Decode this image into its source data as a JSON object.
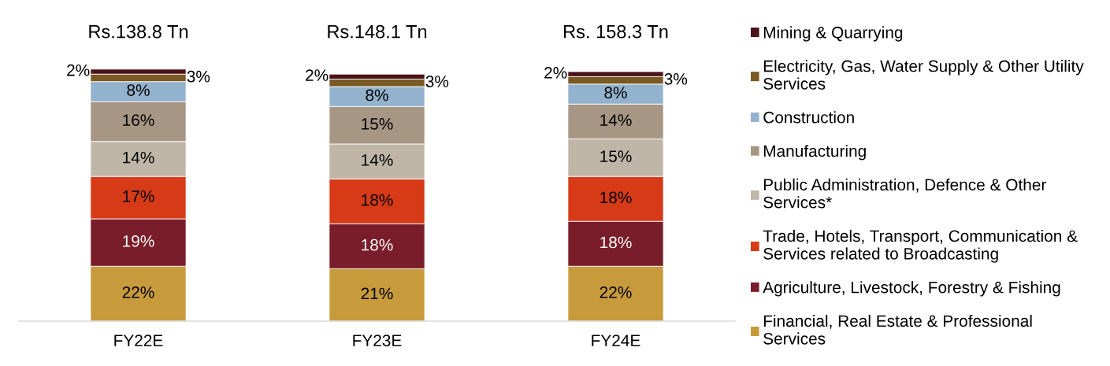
{
  "chart_data": {
    "type": "bar",
    "stacked": true,
    "categories": [
      "FY22E",
      "FY23E",
      "FY24E"
    ],
    "series": [
      {
        "name": "Financial, Real Estate & Professional Services",
        "color": "#c79a3b",
        "values": [
          22,
          21,
          22
        ],
        "value_labels": [
          "22%",
          "21%",
          "22%"
        ]
      },
      {
        "name": "Agriculture, Livestock, Forestry & Fishing",
        "color": "#7a1d2a",
        "values": [
          19,
          18,
          18
        ],
        "value_labels": [
          "19%",
          "18%",
          "18%"
        ]
      },
      {
        "name": "Trade, Hotels, Transport, Communication & Services related to Broadcasting",
        "color": "#d63a16",
        "values": [
          17,
          18,
          18
        ],
        "value_labels": [
          "17%",
          "18%",
          "18%"
        ]
      },
      {
        "name": "Public Administration, Defence & Other Services*",
        "color": "#bfb6a8",
        "values": [
          14,
          14,
          15
        ],
        "value_labels": [
          "14%",
          "14%",
          "15%"
        ]
      },
      {
        "name": "Manufacturing",
        "color": "#a69683",
        "values": [
          16,
          15,
          14
        ],
        "value_labels": [
          "16%",
          "15%",
          "14%"
        ]
      },
      {
        "name": "Construction",
        "color": "#93b2cd",
        "values": [
          8,
          8,
          8
        ],
        "value_labels": [
          "8%",
          "8%",
          "8%"
        ]
      },
      {
        "name": "Electricity, Gas, Water Supply & Other Utility Services",
        "color": "#7a5a22",
        "values": [
          3,
          3,
          3
        ],
        "value_labels": [
          "3%",
          "3%",
          "3%"
        ]
      },
      {
        "name": "Mining & Quarrying",
        "color": "#4a1219",
        "values": [
          2,
          2,
          2
        ],
        "value_labels": [
          "2%",
          "2%",
          "2%"
        ]
      }
    ],
    "annotations": [
      "Rs.138.8 Tn",
      "Rs.148.1 Tn",
      "Rs. 158.3 Tn"
    ],
    "tick_labels": "x",
    "legend": "right"
  }
}
